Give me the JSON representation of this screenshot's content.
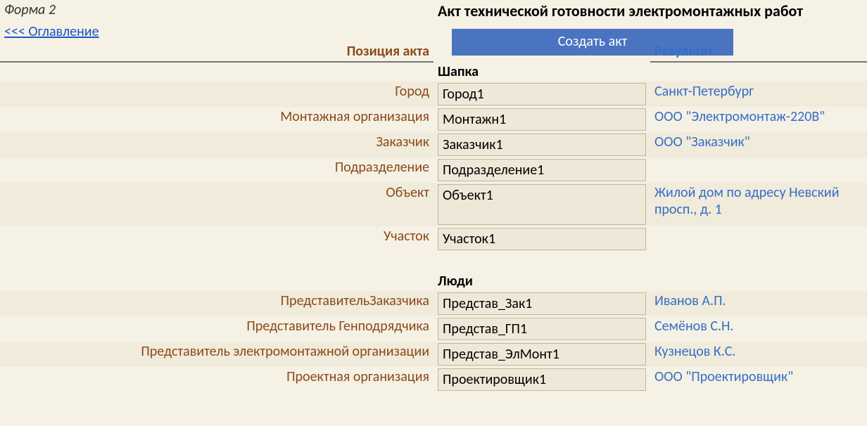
{
  "meta": {
    "form_label": "Форма 2",
    "title": "Акт технической готовности электромонтажных работ",
    "toc_link": "<<< Оглавление"
  },
  "headers": {
    "position": "Позиция акта",
    "create_btn": "Создать акт",
    "result": "Результат"
  },
  "sections": {
    "header": "Шапка",
    "people": "Люди"
  },
  "fields": {
    "city": {
      "label": "Город",
      "value": "Город1",
      "result": "Санкт-Петербург"
    },
    "mount_org": {
      "label": "Монтажная организация",
      "value": "Монтажн1",
      "result": "ООО \"Электромонтаж-220В\""
    },
    "customer": {
      "label": "Заказчик",
      "value": "Заказчик1",
      "result": "ООО \"Заказчик\""
    },
    "department": {
      "label": "Подразделение",
      "value": "Подразделение1",
      "result": ""
    },
    "object": {
      "label": "Объект",
      "value": "Объект1",
      "result": "Жилой дом по адресу Невский просп., д. 1"
    },
    "section": {
      "label": "Участок",
      "value": "Участок1",
      "result": ""
    },
    "rep_customer": {
      "label": "ПредставительЗаказчика",
      "value": "Представ_Зак1",
      "result": "Иванов А.П."
    },
    "rep_gencon": {
      "label": "Представитель Генподрядчика",
      "value": "Представ_ГП1",
      "result": "Семёнов С.Н."
    },
    "rep_elmount": {
      "label": "Представитель электромонтажной организации",
      "value": "Представ_ЭлМонт1",
      "result": "Кузнецов К.С."
    },
    "design_org": {
      "label": "Проектная организация",
      "value": "Проектировщик1",
      "result": "ООО \"Проектировщик\""
    }
  },
  "colors": {
    "bg": "#f5f1e4",
    "stripe": "#f0ebdb",
    "label": "#8a4a1a",
    "link": "#1a57c7",
    "result": "#366ec7",
    "btn_bg": "#4a74c0",
    "input_bg": "#eee8d8",
    "input_border": "#bfb89d"
  }
}
